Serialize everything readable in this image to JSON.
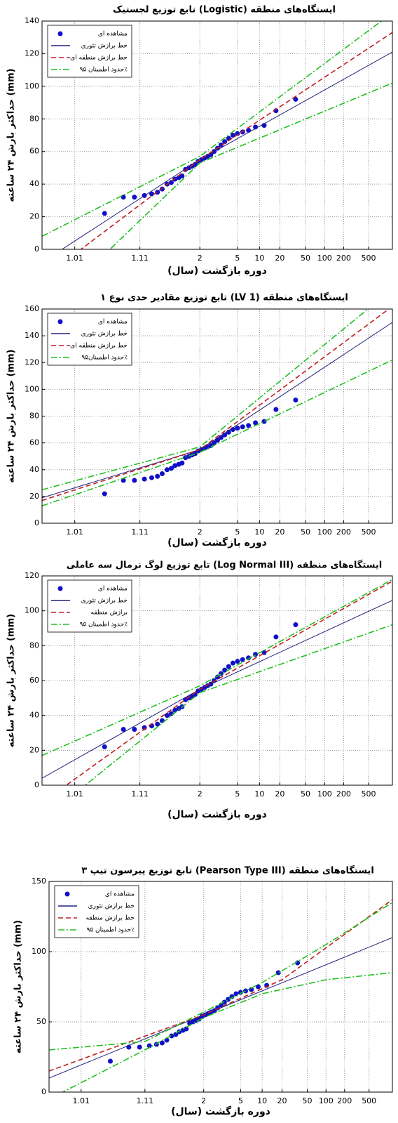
{
  "chart_data": [
    {
      "type": "line",
      "title": "تابع توزیع لجستیک (Logistic) ایستگاه‌های منطقه",
      "xlabel": "دوره بازگشت (سال)",
      "ylabel": "حداکثر بارش ۲۴ ساعته (mm)",
      "xscale": "probability",
      "xlim": [
        1.003,
        1200
      ],
      "xticks": [
        1.01,
        1.11,
        2,
        5,
        10,
        20,
        50,
        100,
        200,
        500
      ],
      "ylim": [
        0,
        140
      ],
      "yticks": [
        0,
        20,
        40,
        60,
        80,
        100,
        120,
        140
      ],
      "grid": true,
      "legend": "top-left",
      "series": [
        {
          "name": "مشاهده ای",
          "color": "#1010c8",
          "style": "markers",
          "x": [
            1.03,
            1.06,
            1.09,
            1.13,
            1.17,
            1.21,
            1.25,
            1.3,
            1.35,
            1.4,
            1.46,
            1.52,
            1.59,
            1.67,
            1.75,
            1.84,
            1.94,
            2.06,
            2.19,
            2.33,
            2.5,
            2.69,
            2.92,
            3.18,
            3.5,
            3.89,
            4.38,
            5,
            5.83,
            7,
            8.75,
            11.67,
            17.5,
            35
          ],
          "values": [
            22,
            32,
            32,
            33,
            34,
            35,
            37,
            40,
            41,
            43,
            44,
            45,
            49,
            50,
            51,
            52,
            54,
            55,
            56,
            57,
            58,
            60,
            62,
            64,
            66,
            68,
            70,
            71,
            72,
            73,
            75,
            76,
            85,
            92
          ]
        },
        {
          "name": "خط برازش تئوری",
          "color": "#202080",
          "style": "solid",
          "x": [
            1.003,
            2,
            1200
          ],
          "values": [
            -8,
            55,
            121
          ]
        },
        {
          "name": "خط برازش منطقه ای",
          "color": "#c02020",
          "style": "dashed",
          "x": [
            1.003,
            2,
            1200
          ],
          "values": [
            -18,
            55,
            133
          ]
        },
        {
          "name": "حدود اطمینان ۹۵٪",
          "color": "#20c020",
          "style": "dashdot",
          "x": [
            1.003,
            2,
            1200
          ],
          "values": [
            8,
            57,
            145
          ],
          "lower": [
            -40,
            53,
            102
          ]
        }
      ]
    },
    {
      "type": "line",
      "title": "تابع توزیع مقادیر حدی نوع ۱ (LV 1) ایستگاه‌های منطقه",
      "xlabel": "دوره بازگشت (سال)",
      "ylabel": "حداکثر بارش ۲۴ ساعته (mm)",
      "xscale": "probability",
      "xlim": [
        1.003,
        1200
      ],
      "xticks": [
        1.01,
        1.11,
        2,
        5,
        10,
        20,
        50,
        100,
        200,
        500
      ],
      "ylim": [
        0,
        160
      ],
      "yticks": [
        0,
        20,
        40,
        60,
        80,
        100,
        120,
        140,
        160
      ],
      "grid": true,
      "legend": "top-left",
      "series": [
        {
          "name": "مشاهده ای",
          "color": "#1010c8",
          "style": "markers",
          "x": [
            1.03,
            1.06,
            1.09,
            1.13,
            1.17,
            1.21,
            1.25,
            1.3,
            1.35,
            1.4,
            1.46,
            1.52,
            1.59,
            1.67,
            1.75,
            1.84,
            1.94,
            2.06,
            2.19,
            2.33,
            2.5,
            2.69,
            2.92,
            3.18,
            3.5,
            3.89,
            4.38,
            5,
            5.83,
            7,
            8.75,
            11.67,
            17.5,
            35
          ],
          "values": [
            22,
            32,
            32,
            33,
            34,
            35,
            37,
            40,
            41,
            43,
            44,
            45,
            49,
            50,
            51,
            52,
            54,
            55,
            56,
            57,
            58,
            60,
            62,
            64,
            66,
            68,
            70,
            71,
            72,
            73,
            75,
            76,
            85,
            92
          ]
        },
        {
          "name": "خط برازش تئوری",
          "color": "#202080",
          "style": "solid",
          "x": [
            1.003,
            2,
            1200
          ],
          "values": [
            19,
            55,
            150
          ]
        },
        {
          "name": "خط برازش منطقه ای",
          "color": "#c02020",
          "style": "dashed",
          "x": [
            1.003,
            2,
            1200
          ],
          "values": [
            17,
            55,
            162
          ]
        },
        {
          "name": "حدود اطمینان۹۵٪",
          "color": "#20c020",
          "style": "dashdot",
          "x": [
            1.003,
            2,
            1200
          ],
          "values": [
            25,
            57,
            175
          ],
          "lower": [
            13,
            53,
            122
          ]
        }
      ]
    },
    {
      "type": "line",
      "title": "تابع توزیع لوگ نرمال سه عاملی (Log Normal III) ایستگاه‌های منطقه",
      "xlabel": "دوره بازگشت (سال)",
      "ylabel": "حداکثر بارش ۲۴ ساعته (mm)",
      "xscale": "probability",
      "xlim": [
        1.003,
        1200
      ],
      "xticks": [
        1.01,
        1.11,
        2,
        5,
        10,
        20,
        50,
        100,
        200,
        500
      ],
      "ylim": [
        0,
        120
      ],
      "yticks": [
        0,
        20,
        40,
        60,
        80,
        100,
        120
      ],
      "grid": true,
      "legend": "top-left",
      "series": [
        {
          "name": "مشاهده ای",
          "color": "#1010c8",
          "style": "markers",
          "x": [
            1.03,
            1.06,
            1.09,
            1.13,
            1.17,
            1.21,
            1.25,
            1.3,
            1.35,
            1.4,
            1.46,
            1.52,
            1.59,
            1.67,
            1.75,
            1.84,
            1.94,
            2.06,
            2.19,
            2.33,
            2.5,
            2.69,
            2.92,
            3.18,
            3.5,
            3.89,
            4.38,
            5,
            5.83,
            7,
            8.75,
            11.67,
            17.5,
            35
          ],
          "values": [
            22,
            32,
            32,
            33,
            34,
            35,
            37,
            40,
            41,
            43,
            44,
            45,
            49,
            50,
            51,
            52,
            54,
            55,
            56,
            57,
            58,
            60,
            62,
            64,
            66,
            68,
            70,
            71,
            72,
            73,
            75,
            76,
            85,
            92
          ]
        },
        {
          "name": "خط برازش تئوری",
          "color": "#202080",
          "style": "solid",
          "x": [
            1.003,
            2,
            1200
          ],
          "values": [
            4,
            55,
            106
          ]
        },
        {
          "name": "برازش منطقه",
          "color": "#c02020",
          "style": "dashed",
          "x": [
            1.003,
            2,
            1200
          ],
          "values": [
            -10,
            55,
            117
          ]
        },
        {
          "name": "حدود اطمینان ۹۵٪",
          "color": "#20c020",
          "style": "dashdot",
          "x": [
            1.003,
            2,
            1200
          ],
          "values": [
            17,
            57,
            118
          ],
          "lower": [
            -20,
            53,
            92
          ]
        }
      ]
    },
    {
      "type": "line",
      "title": "تابع توزیع پیرسون تیپ ۳ (Pearson Type III) ایستگاه‌های منطقه",
      "xlabel": "دوره بازگشت (سال)",
      "ylabel": "حداکثر بارش ۲۴ ساعته (mm)",
      "xscale": "probability",
      "xlim": [
        1.003,
        1200
      ],
      "xticks": [
        1.01,
        1.11,
        2,
        5,
        10,
        20,
        50,
        100,
        200,
        500
      ],
      "ylim": [
        0,
        150
      ],
      "yticks": [
        0,
        50,
        100,
        150
      ],
      "grid": true,
      "legend": "top-left",
      "series": [
        {
          "name": "مشاهده ای",
          "color": "#1010c8",
          "style": "markers",
          "x": [
            1.03,
            1.06,
            1.09,
            1.13,
            1.17,
            1.21,
            1.25,
            1.3,
            1.35,
            1.4,
            1.46,
            1.52,
            1.59,
            1.67,
            1.75,
            1.84,
            1.94,
            2.06,
            2.19,
            2.33,
            2.5,
            2.69,
            2.92,
            3.18,
            3.5,
            3.89,
            4.38,
            5,
            5.83,
            7,
            8.75,
            11.67,
            17.5,
            35
          ],
          "values": [
            22,
            32,
            32,
            33,
            34,
            35,
            37,
            40,
            41,
            43,
            44,
            45,
            49,
            50,
            51,
            52,
            54,
            55,
            56,
            57,
            58,
            60,
            62,
            64,
            66,
            68,
            70,
            71,
            72,
            73,
            75,
            76,
            85,
            92
          ]
        },
        {
          "name": "خط برازش تئوری",
          "color": "#202080",
          "style": "solid",
          "x": [
            1.003,
            2,
            1200
          ],
          "values": [
            10,
            55,
            110
          ]
        },
        {
          "name": "خط برازش منطقه",
          "color": "#c02020",
          "style": "dashed",
          "x": [
            1.003,
            2,
            20,
            1200
          ],
          "values": [
            15,
            55,
            80,
            137
          ]
        },
        {
          "name": "حدود اطمینان ۹۵٪",
          "color": "#20c020",
          "style": "dashdot",
          "x": [
            1.003,
            1.11,
            2,
            10,
            100,
            1200
          ],
          "values": [
            30,
            36,
            57,
            78,
            105,
            135
          ],
          "lower": [
            -5,
            30,
            53,
            70,
            80,
            85
          ]
        }
      ]
    }
  ]
}
